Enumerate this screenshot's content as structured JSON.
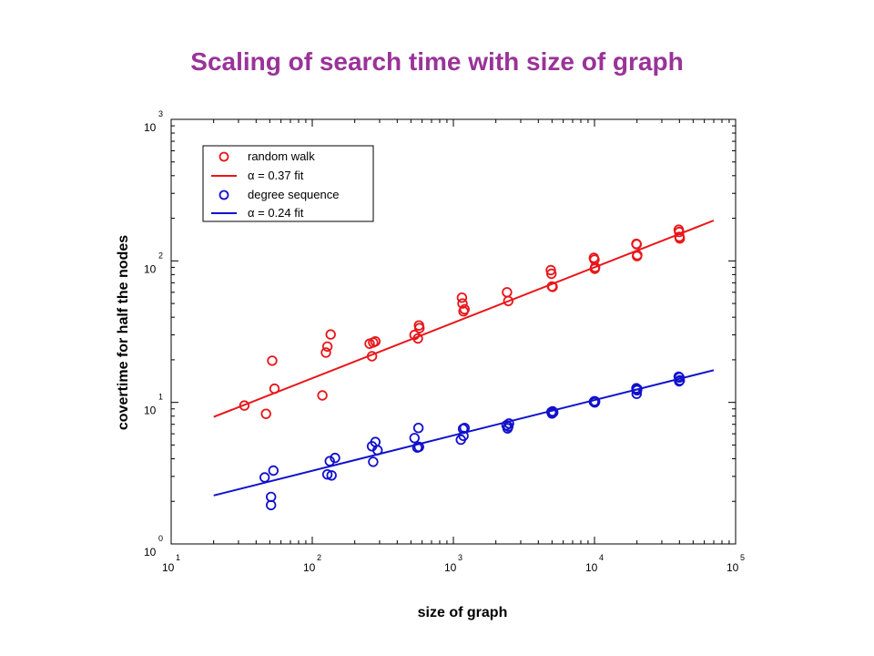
{
  "slide": {
    "title": "Scaling of search time with size of graph"
  },
  "chart_data": {
    "type": "scatter",
    "title": "Scaling of search time with size of graph",
    "xlabel": "size of graph",
    "ylabel": "covertime for half the nodes",
    "xscale": "log",
    "yscale": "log",
    "xlim": [
      10,
      100000
    ],
    "ylim": [
      1,
      1000
    ],
    "x_ticks": [
      {
        "base": "10",
        "exp": "1",
        "value": 10
      },
      {
        "base": "10",
        "exp": "2",
        "value": 100
      },
      {
        "base": "10",
        "exp": "3",
        "value": 1000
      },
      {
        "base": "10",
        "exp": "4",
        "value": 10000
      },
      {
        "base": "10",
        "exp": "5",
        "value": 100000
      }
    ],
    "y_ticks": [
      {
        "base": "10",
        "exp": "0",
        "value": 1
      },
      {
        "base": "10",
        "exp": "1",
        "value": 10
      },
      {
        "base": "10",
        "exp": "2",
        "value": 100
      },
      {
        "base": "10",
        "exp": "3",
        "value": 1000
      }
    ],
    "grid": false,
    "legend_position": "top-left",
    "legend": [
      {
        "label": "random walk",
        "kind": "marker",
        "color": "#e8161a"
      },
      {
        "alpha_symbol": "α",
        "label": " = 0.37 fit",
        "kind": "line",
        "color": "#e8161a"
      },
      {
        "label": "degree sequence",
        "kind": "marker",
        "color": "#1111cc"
      },
      {
        "alpha_symbol": "α",
        "label": " = 0.24 fit",
        "kind": "line",
        "color": "#1111cc"
      }
    ],
    "series": [
      {
        "name": "random walk",
        "type": "scatter",
        "color": "#e8161a",
        "points": [
          [
            33,
            9.5
          ],
          [
            47,
            8.3
          ],
          [
            52,
            19.7
          ],
          [
            54,
            12.5
          ],
          [
            118,
            11.2
          ],
          [
            125,
            22.5
          ],
          [
            128,
            24.8
          ],
          [
            135,
            30.2
          ],
          [
            255,
            26.0
          ],
          [
            265,
            21.2
          ],
          [
            270,
            26.5
          ],
          [
            280,
            27.0
          ],
          [
            530,
            30.0
          ],
          [
            560,
            28.3
          ],
          [
            570,
            35.0
          ],
          [
            575,
            33.5
          ],
          [
            1150,
            55.0
          ],
          [
            1160,
            50.0
          ],
          [
            1180,
            44.0
          ],
          [
            1200,
            45.5
          ],
          [
            2400,
            60.0
          ],
          [
            2450,
            52.0
          ],
          [
            4900,
            86.0
          ],
          [
            4950,
            81.0
          ],
          [
            5000,
            66.0
          ],
          [
            5050,
            65.5
          ],
          [
            9900,
            105.0
          ],
          [
            10000,
            102.0
          ],
          [
            10050,
            88.0
          ],
          [
            10100,
            90.0
          ],
          [
            19800,
            132.0
          ],
          [
            19900,
            131.0
          ],
          [
            20000,
            108.0
          ],
          [
            20100,
            110.0
          ],
          [
            39500,
            166.0
          ],
          [
            39800,
            160.0
          ],
          [
            40000,
            148.0
          ],
          [
            40200,
            144.0
          ]
        ]
      },
      {
        "name": "α = 0.37 fit",
        "type": "line",
        "color": "#e8161a",
        "x": [
          20,
          70000
        ],
        "y": [
          7.9,
          193
        ]
      },
      {
        "name": "degree sequence",
        "type": "scatter",
        "color": "#1111cc",
        "points": [
          [
            46,
            2.95
          ],
          [
            51,
            2.15
          ],
          [
            51,
            1.88
          ],
          [
            53,
            3.3
          ],
          [
            128,
            3.1
          ],
          [
            133,
            3.85
          ],
          [
            137,
            3.05
          ],
          [
            145,
            4.05
          ],
          [
            265,
            4.9
          ],
          [
            270,
            3.8
          ],
          [
            280,
            5.25
          ],
          [
            290,
            4.6
          ],
          [
            530,
            5.6
          ],
          [
            555,
            4.8
          ],
          [
            565,
            6.6
          ],
          [
            570,
            4.85
          ],
          [
            1130,
            5.45
          ],
          [
            1170,
            6.5
          ],
          [
            1180,
            5.8
          ],
          [
            1200,
            6.6
          ],
          [
            2380,
            6.9
          ],
          [
            2420,
            6.55
          ],
          [
            2450,
            6.75
          ],
          [
            2480,
            7.1
          ],
          [
            4950,
            8.55
          ],
          [
            5000,
            8.35
          ],
          [
            5050,
            8.65
          ],
          [
            5100,
            8.5
          ],
          [
            9900,
            10.1
          ],
          [
            10000,
            10.2
          ],
          [
            10050,
            10.0
          ],
          [
            10100,
            10.15
          ],
          [
            19800,
            12.6
          ],
          [
            19900,
            11.5
          ],
          [
            20000,
            12.2
          ],
          [
            20100,
            12.45
          ],
          [
            39500,
            15.2
          ],
          [
            39800,
            14.1
          ],
          [
            40000,
            15.0
          ],
          [
            40200,
            14.3
          ]
        ]
      },
      {
        "name": "α = 0.24 fit",
        "type": "line",
        "color": "#1111cc",
        "x": [
          20,
          70000
        ],
        "y": [
          2.2,
          16.9
        ]
      }
    ]
  }
}
